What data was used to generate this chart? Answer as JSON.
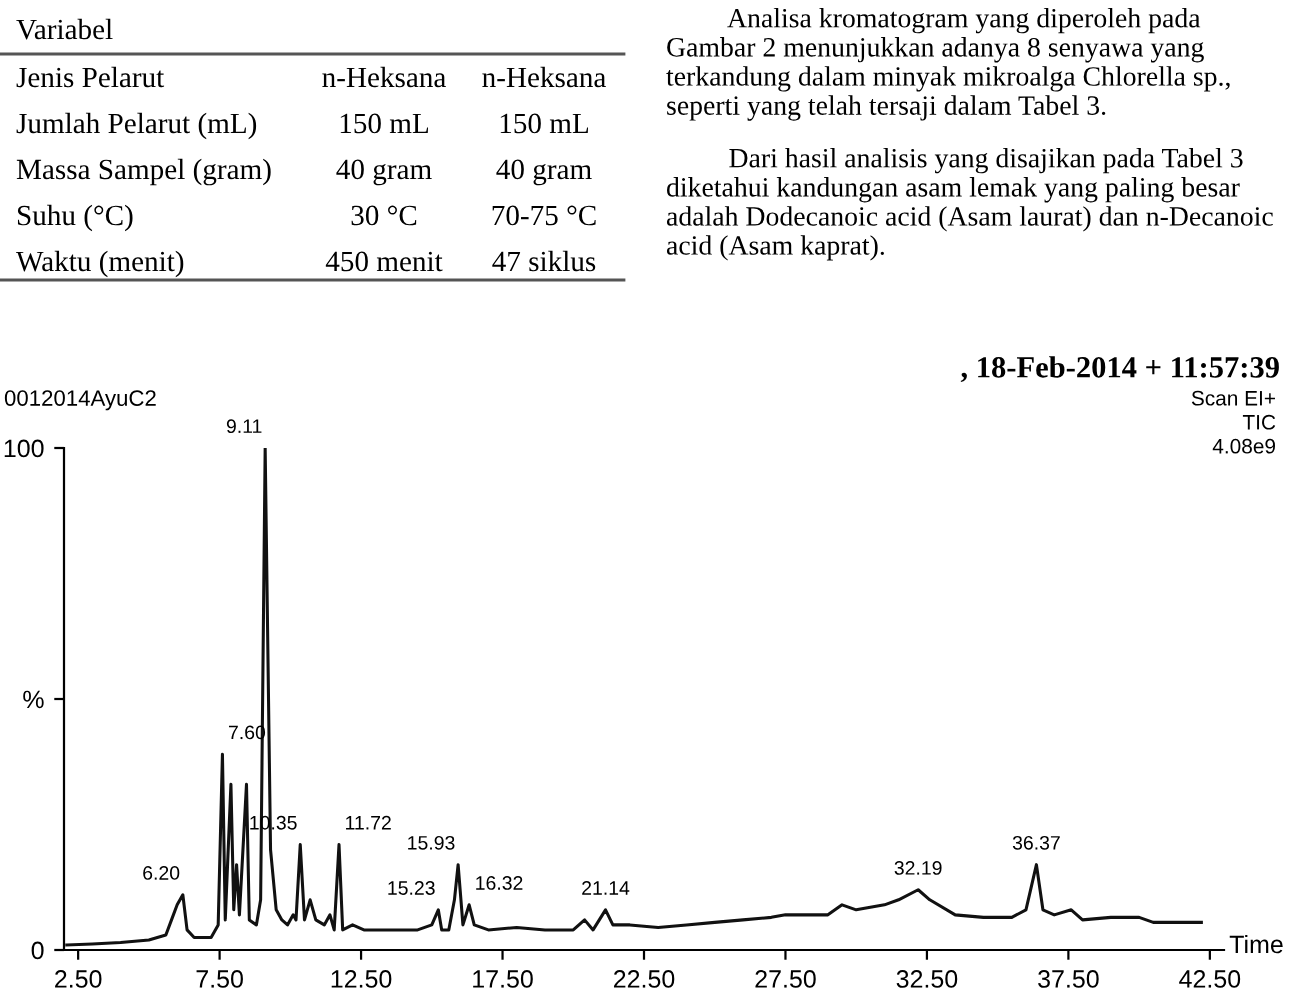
{
  "chart_data": {
    "type": "line",
    "xlabel": "Time",
    "x": [
      2.1,
      3,
      4,
      5,
      5.6,
      5.8,
      6.0,
      6.2,
      6.35,
      6.6,
      7.2,
      7.45,
      7.6,
      7.7,
      7.9,
      8.0,
      8.1,
      8.2,
      8.45,
      8.55,
      8.8,
      8.95,
      9.11,
      9.3,
      9.5,
      9.7,
      9.9,
      10.1,
      10.2,
      10.35,
      10.5,
      10.7,
      10.9,
      11.2,
      11.4,
      11.55,
      11.72,
      11.85,
      12.2,
      12.6,
      13.0,
      13.5,
      14.0,
      14.5,
      15.0,
      15.23,
      15.35,
      15.6,
      15.8,
      15.93,
      16.1,
      16.32,
      16.5,
      17,
      18,
      19,
      20,
      20.4,
      20.7,
      21.14,
      21.4,
      22,
      23,
      24,
      25,
      26,
      27,
      27.5,
      28,
      29,
      29.5,
      30,
      31,
      31.5,
      32.19,
      32.6,
      33.5,
      34.5,
      35.5,
      36.0,
      36.37,
      36.6,
      37.0,
      37.6,
      38,
      39,
      40,
      40.5,
      41.5,
      42.2
    ],
    "series": [
      {
        "color": "#111111",
        "values": [
          1,
          1.2,
          1.5,
          2,
          3,
          6,
          9,
          11,
          4,
          2.5,
          2.5,
          5,
          39,
          6,
          33,
          8,
          17,
          7,
          33,
          6,
          5,
          10,
          100,
          20,
          8,
          6,
          5,
          7,
          6,
          21,
          6,
          10,
          6,
          5,
          7,
          4,
          21,
          4,
          5,
          4,
          4,
          4,
          4,
          4,
          5,
          8,
          4,
          4,
          10,
          17,
          5,
          9,
          5,
          4,
          4.5,
          4,
          4,
          6,
          4,
          8,
          5,
          5,
          4.5,
          5,
          5.5,
          6,
          6.5,
          7,
          7,
          7,
          9,
          8,
          9,
          10,
          12,
          10,
          7,
          6.5,
          6.5,
          8,
          17,
          8,
          7,
          8,
          6,
          6.5,
          6.5,
          5.5,
          5.5,
          5.5
        ]
      }
    ],
    "xlim": [
      2.0,
      43.0
    ],
    "ylim": [
      0,
      100
    ],
    "xticks": [
      {
        "value": 2.5,
        "label": "2.50"
      },
      {
        "value": 7.5,
        "label": "7.50"
      },
      {
        "value": 12.5,
        "label": "12.50"
      },
      {
        "value": 17.5,
        "label": "17.50"
      },
      {
        "value": 22.5,
        "label": "22.50"
      },
      {
        "value": 27.5,
        "label": "27.50"
      },
      {
        "value": 32.5,
        "label": "32.50"
      },
      {
        "value": 37.5,
        "label": "37.50"
      },
      {
        "value": 42.5,
        "label": "42.50"
      }
    ],
    "yticks": [
      0,
      {
        "value": 50,
        "label": "%"
      },
      100
    ],
    "grid": false,
    "legend": false,
    "marker": "none",
    "line_style": "solid",
    "annotations": [
      "Variabel",
      "Jenis Pelarut",
      "n-Heksana",
      "n-Heksana",
      "Jumlah Pelarut (mL)",
      "150 mL",
      "150 mL",
      "Massa Sampel (gram)",
      "40 gram",
      "40 gram",
      "Suhu (°C)",
      "30 °C",
      "70-75 °C",
      "Waktu (menit)",
      "450 menit",
      "47 siklus",
      "Analisa kromatogram yang diperoleh pada Gambar 2 menunjukkan adanya 8 senyawa yang terkandung dalam minyak mikroalga Chlorella sp., seperti yang telah tersaji dalam Tabel 3.",
      "Dari hasil analisis yang disajikan pada Tabel 3 diketahui kandungan asam lemak yang paling besar adalah Dodecanoic acid (Asam laurat) dan n-Decanoic acid (Asam kaprat).",
      "0012014AyuC2",
      ", 18-Feb-2014 + 11:57:39",
      "Scan EI+",
      "TIC",
      "4.08e9",
      {
        "text": "6.20",
        "x": 6.2,
        "y": 11
      },
      {
        "text": "7.60",
        "x": 7.6,
        "y": 39
      },
      {
        "text": "9.11",
        "x": 9.11,
        "y": 100
      },
      {
        "text": "10.35",
        "x": 10.35,
        "y": 21
      },
      {
        "text": "11.72",
        "x": 11.72,
        "y": 21
      },
      {
        "text": "15.23",
        "x": 15.23,
        "y": 8
      },
      {
        "text": "15.93",
        "x": 15.93,
        "y": 17
      },
      {
        "text": "16.32",
        "x": 16.32,
        "y": 9
      },
      {
        "text": "21.14",
        "x": 21.14,
        "y": 8
      },
      {
        "text": "32.19",
        "x": 32.19,
        "y": 12
      },
      {
        "text": "36.37",
        "x": 36.37,
        "y": 17
      }
    ]
  }
}
